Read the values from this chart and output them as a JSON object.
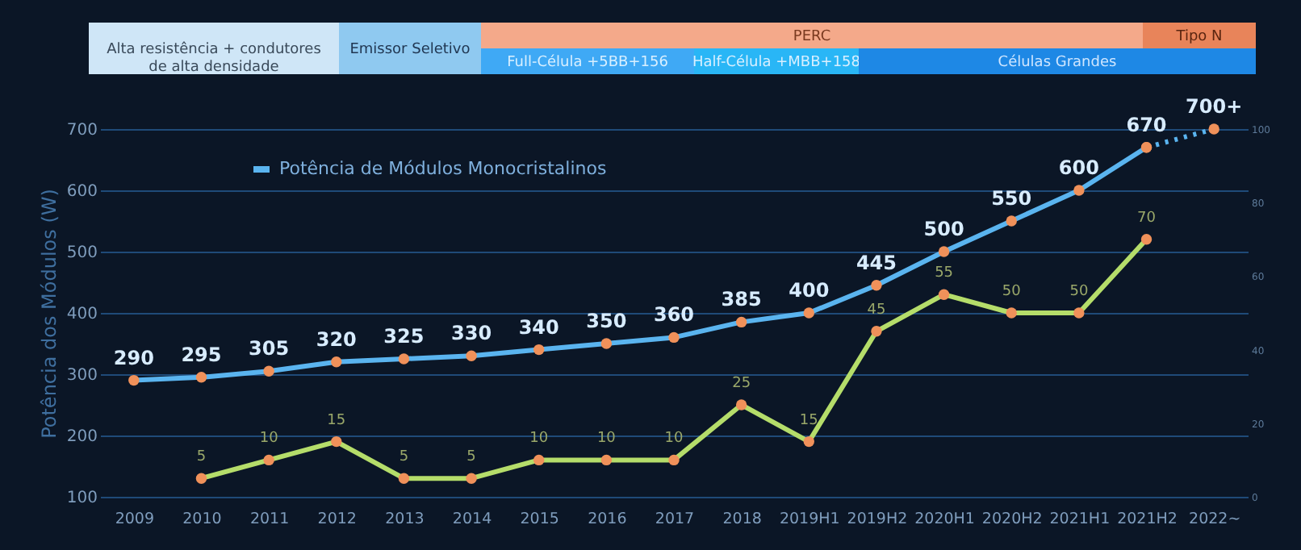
{
  "chart_data": {
    "type": "line",
    "ylabel": "Potência dos Módulos  (W)",
    "categories": [
      "2009",
      "2010",
      "2011",
      "2012",
      "2013",
      "2014",
      "2015",
      "2016",
      "2017",
      "2018",
      "2019H1",
      "2019H2",
      "2020H1",
      "2020H2",
      "2021H1",
      "2021H2",
      "2022~"
    ],
    "series": [
      {
        "name": "Potência de Módulos Monocristalinos",
        "color": "#5ab4ef",
        "line_style": "solid",
        "values": [
          290,
          295,
          305,
          320,
          325,
          330,
          340,
          350,
          360,
          385,
          400,
          445,
          500,
          550,
          600,
          670,
          null
        ],
        "value_labels": [
          "290",
          "295",
          "305",
          "320",
          "325",
          "330",
          "340",
          "350",
          "360",
          "385",
          "400",
          "445",
          "500",
          "550",
          "600",
          "670",
          null
        ]
      },
      {
        "type": "line",
        "color": "#5ab4ef",
        "line_style": "dotted",
        "values": [
          null,
          null,
          null,
          null,
          null,
          null,
          null,
          null,
          null,
          null,
          null,
          null,
          null,
          null,
          null,
          670,
          700
        ],
        "value_labels": [
          null,
          null,
          null,
          null,
          null,
          null,
          null,
          null,
          null,
          null,
          null,
          null,
          null,
          null,
          null,
          null,
          "700+"
        ]
      },
      {
        "color": "#b5dd6a",
        "axis": "y2",
        "line_style": "solid",
        "values": [
          null,
          5,
          10,
          15,
          5,
          5,
          10,
          10,
          10,
          25,
          15,
          45,
          55,
          50,
          50,
          70,
          null
        ],
        "value_labels": [
          null,
          "5",
          "10",
          "15",
          "5",
          "5",
          "10",
          "10",
          "10",
          "25",
          "15",
          "45",
          "55",
          "50",
          "50",
          "70",
          null
        ]
      }
    ],
    "ylim": [
      100,
      700
    ],
    "yticks": [
      100,
      200,
      300,
      400,
      500,
      600,
      700
    ],
    "y2lim": [
      0,
      100
    ],
    "y2ticks": [
      0,
      20,
      40,
      60,
      80,
      100
    ],
    "marker": "circle",
    "grid": "y",
    "legend": "top left",
    "annotations": [
      "Alta resistência + condutores\nde alta densidade",
      "Emissor Seletivo",
      "PERC",
      "Tipo N",
      "Full-Célula +5BB+156",
      "Half-Célula +MBB+158",
      "Células Grandes"
    ]
  }
}
